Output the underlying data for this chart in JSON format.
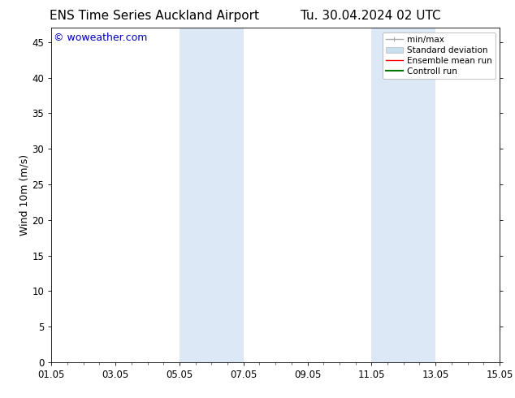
{
  "title_left": "ENS Time Series Auckland Airport",
  "title_right": "Tu. 30.04.2024 02 UTC",
  "ylabel": "Wind 10m (m/s)",
  "ylim": [
    0,
    47
  ],
  "yticks": [
    0,
    5,
    10,
    15,
    20,
    25,
    30,
    35,
    40,
    45
  ],
  "xlim": [
    0,
    14
  ],
  "xtick_labels": [
    "01.05",
    "03.05",
    "05.05",
    "07.05",
    "09.05",
    "11.05",
    "13.05",
    "15.05"
  ],
  "xtick_positions": [
    0,
    2,
    4,
    6,
    8,
    10,
    12,
    14
  ],
  "shaded_regions": [
    {
      "start": 4.0,
      "end": 6.0,
      "color": "#dce8f5"
    },
    {
      "start": 10.0,
      "end": 12.0,
      "color": "#dce8f5"
    }
  ],
  "watermark_text": "© woweather.com",
  "watermark_color": "#0000bb",
  "watermark_fontsize": 9,
  "bg_color": "#ffffff",
  "legend_items": [
    {
      "label": "min/max",
      "color": "#aaaaaa",
      "lw": 1.0
    },
    {
      "label": "Standard deviation",
      "color": "#c8dff0",
      "lw": 7
    },
    {
      "label": "Ensemble mean run",
      "color": "#ff0000",
      "lw": 1.0
    },
    {
      "label": "Controll run",
      "color": "#007700",
      "lw": 1.5
    }
  ],
  "title_fontsize": 11,
  "ylabel_fontsize": 9,
  "tick_fontsize": 8.5,
  "legend_fontsize": 7.5
}
